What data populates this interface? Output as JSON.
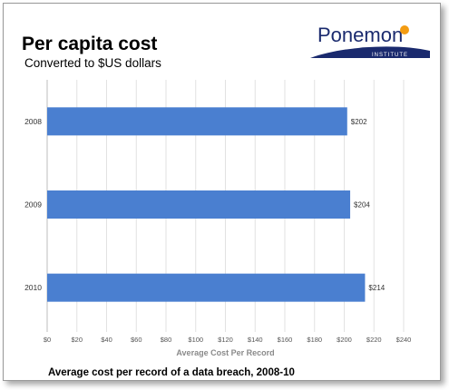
{
  "slide": {
    "title": "Per capita cost",
    "subtitle": "Converted to $US dollars",
    "caption": "Average cost per record of a data breach, 2008-10"
  },
  "logo": {
    "name": "Ponemon",
    "tagline": "INSTITUTE",
    "brand_color": "#1a2a6e"
  },
  "chart_data": {
    "type": "bar",
    "orientation": "horizontal",
    "categories": [
      "2008",
      "2009",
      "2010"
    ],
    "values": [
      202,
      204,
      214
    ],
    "value_labels": [
      "$202",
      "$204",
      "$214"
    ],
    "xlabel": "Average Cost Per Record",
    "xlim": [
      0,
      240
    ],
    "x_ticks": [
      0,
      20,
      40,
      60,
      80,
      100,
      120,
      140,
      160,
      180,
      200,
      220,
      240
    ],
    "x_tick_labels": [
      "$0",
      "$20",
      "$40",
      "$60",
      "$80",
      "$100",
      "$120",
      "$140",
      "$160",
      "$180",
      "$200",
      "$220",
      "$240"
    ],
    "grid": "vertical",
    "bar_color": "#4a7fd0",
    "legend": "none"
  }
}
